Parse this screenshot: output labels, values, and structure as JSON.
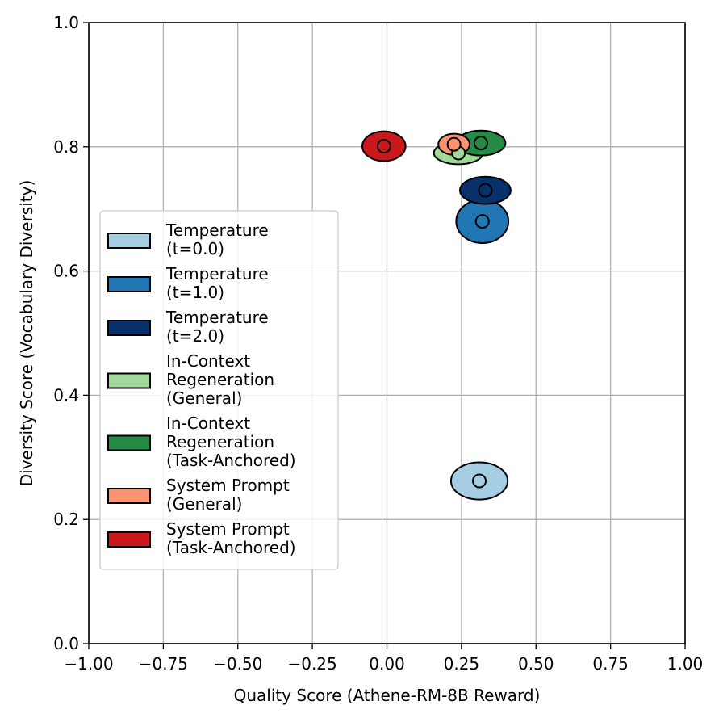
{
  "chart_data": {
    "type": "scatter",
    "title": "",
    "xlabel": "Quality Score (Athene-RM-8B Reward)",
    "ylabel": "Diversity Score (Vocabulary Diversity)",
    "xlim": [
      -1.0,
      1.0
    ],
    "ylim": [
      0.0,
      1.0
    ],
    "grid": true,
    "legend_position": "lower-left",
    "x_ticks": [
      "−1.00",
      "−0.75",
      "−0.50",
      "−0.25",
      "0.00",
      "0.25",
      "0.50",
      "0.75",
      "1.00"
    ],
    "x_tick_values": [
      -1.0,
      -0.75,
      -0.5,
      -0.25,
      0.0,
      0.25,
      0.5,
      0.75,
      1.0
    ],
    "y_ticks": [
      "0.0",
      "0.2",
      "0.4",
      "0.6",
      "0.8",
      "1.0"
    ],
    "y_tick_values": [
      0.0,
      0.2,
      0.4,
      0.6,
      0.8,
      1.0
    ],
    "series": [
      {
        "name": "Temperature (t=0.0)",
        "legend_lines": [
          "Temperature",
          "(t=0.0)"
        ],
        "x": 0.31,
        "y": 0.262,
        "x_spread": 0.19,
        "y_spread": 0.03,
        "color": "#a6cee3"
      },
      {
        "name": "Temperature (t=1.0)",
        "legend_lines": [
          "Temperature",
          "(t=1.0)"
        ],
        "x": 0.32,
        "y": 0.68,
        "x_spread": 0.175,
        "y_spread": 0.035,
        "color": "#2077b4"
      },
      {
        "name": "Temperature (t=2.0)",
        "legend_lines": [
          "Temperature",
          "(t=2.0)"
        ],
        "x": 0.33,
        "y": 0.73,
        "x_spread": 0.17,
        "y_spread": 0.022,
        "color": "#08306b"
      },
      {
        "name": "In-Context Regeneration (General)",
        "legend_lines": [
          "In-Context",
          "Regeneration",
          "(General)"
        ],
        "x": 0.24,
        "y": 0.79,
        "x_spread": 0.165,
        "y_spread": 0.018,
        "color": "#a1d99b"
      },
      {
        "name": "In-Context Regeneration (Task-Anchored)",
        "legend_lines": [
          "In-Context",
          "Regeneration",
          "(Task-Anchored)"
        ],
        "x": 0.315,
        "y": 0.806,
        "x_spread": 0.165,
        "y_spread": 0.02,
        "color": "#238b45"
      },
      {
        "name": "System Prompt (General)",
        "legend_lines": [
          "System Prompt",
          "(General)"
        ],
        "x": 0.225,
        "y": 0.804,
        "x_spread": 0.105,
        "y_spread": 0.017,
        "color": "#fc9272"
      },
      {
        "name": "System Prompt (Task-Anchored)",
        "legend_lines": [
          "System Prompt",
          "(Task-Anchored)"
        ],
        "x": -0.01,
        "y": 0.801,
        "x_spread": 0.145,
        "y_spread": 0.024,
        "color": "#cb181d"
      }
    ],
    "draw_order": [
      0,
      1,
      2,
      3,
      4,
      5,
      6
    ]
  }
}
